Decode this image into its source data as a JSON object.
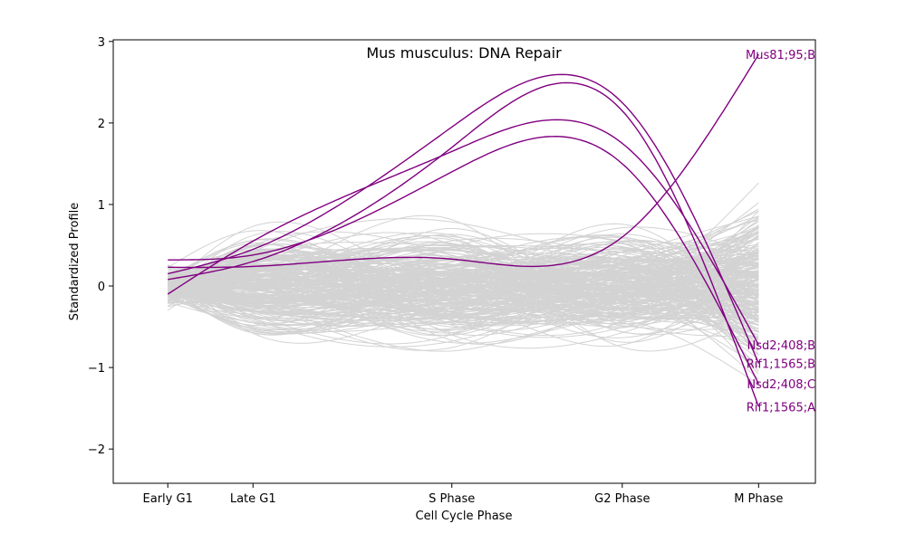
{
  "chart_data": {
    "type": "line",
    "title": "Mus musculus: DNA Repair",
    "xlabel": "Cell Cycle Phase",
    "ylabel": "Standardized Profile",
    "categories": [
      "Early G1",
      "Late G1",
      "S Phase",
      "G2 Phase",
      "M Phase"
    ],
    "category_positions": [
      0,
      0.75,
      2.5,
      4,
      5.2
    ],
    "xlim": [
      -0.48,
      5.7
    ],
    "ylim": [
      -2.42,
      3.02
    ],
    "yticks": [
      -2,
      -1,
      0,
      1,
      2,
      3
    ],
    "grid": false,
    "background_color": "#d3d3d3",
    "highlight_color": "#800080",
    "highlighted_series": [
      {
        "name": "Mus81;95;B",
        "points": [
          0.23,
          0.24,
          0.33,
          0.6,
          2.84
        ]
      },
      {
        "name": "Nsd2;408;B",
        "points": [
          -0.1,
          0.55,
          1.65,
          1.75,
          -0.72
        ]
      },
      {
        "name": "Rif1;1565;B",
        "points": [
          0.15,
          0.45,
          1.95,
          2.25,
          -0.95
        ]
      },
      {
        "name": "Nsd2;408;C",
        "points": [
          0.32,
          0.38,
          1.4,
          1.5,
          -1.2
        ]
      },
      {
        "name": "Rif1;1565;A",
        "points": [
          0.08,
          0.3,
          1.7,
          2.15,
          -1.48
        ]
      }
    ]
  }
}
